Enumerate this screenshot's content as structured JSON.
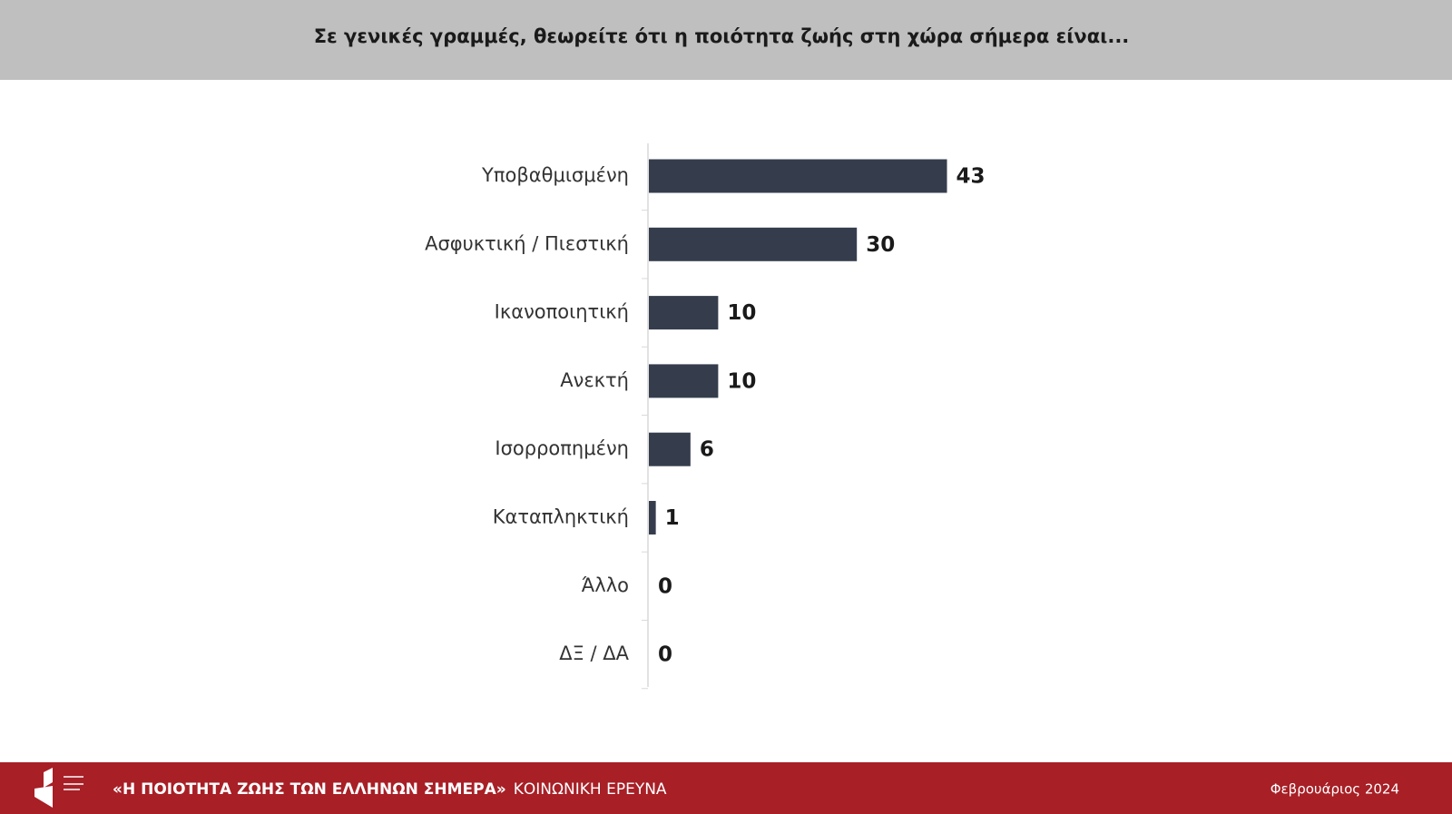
{
  "chart_data": {
    "type": "bar",
    "orientation": "horizontal",
    "title": "Σε γενικές γραμμές, θεωρείτε ότι η ποιότητα ζωής στη χώρα σήμερα είναι...",
    "categories": [
      "Υποβαθμισμένη",
      "Ασφυκτική / Πιεστική",
      "Ικανοποιητική",
      "Ανεκτή",
      "Ισορροπημένη",
      "Καταπληκτική",
      "Άλλο",
      "ΔΞ / ΔΑ"
    ],
    "values": [
      43,
      30,
      10,
      10,
      6,
      1,
      0,
      0
    ],
    "color": "#353d4d"
  },
  "footer": {
    "title": "«Η ΠΟΙΟΤΗΤΑ ΖΩΗΣ ΤΩΝ ΕΛΛΗΝΩΝ ΣΗΜΕΡΑ»",
    "subtitle": "ΚΟΙΝΩΝΙΚΗ ΕΡΕΥΝΑ",
    "date": "Φεβρουάριος 2024"
  }
}
